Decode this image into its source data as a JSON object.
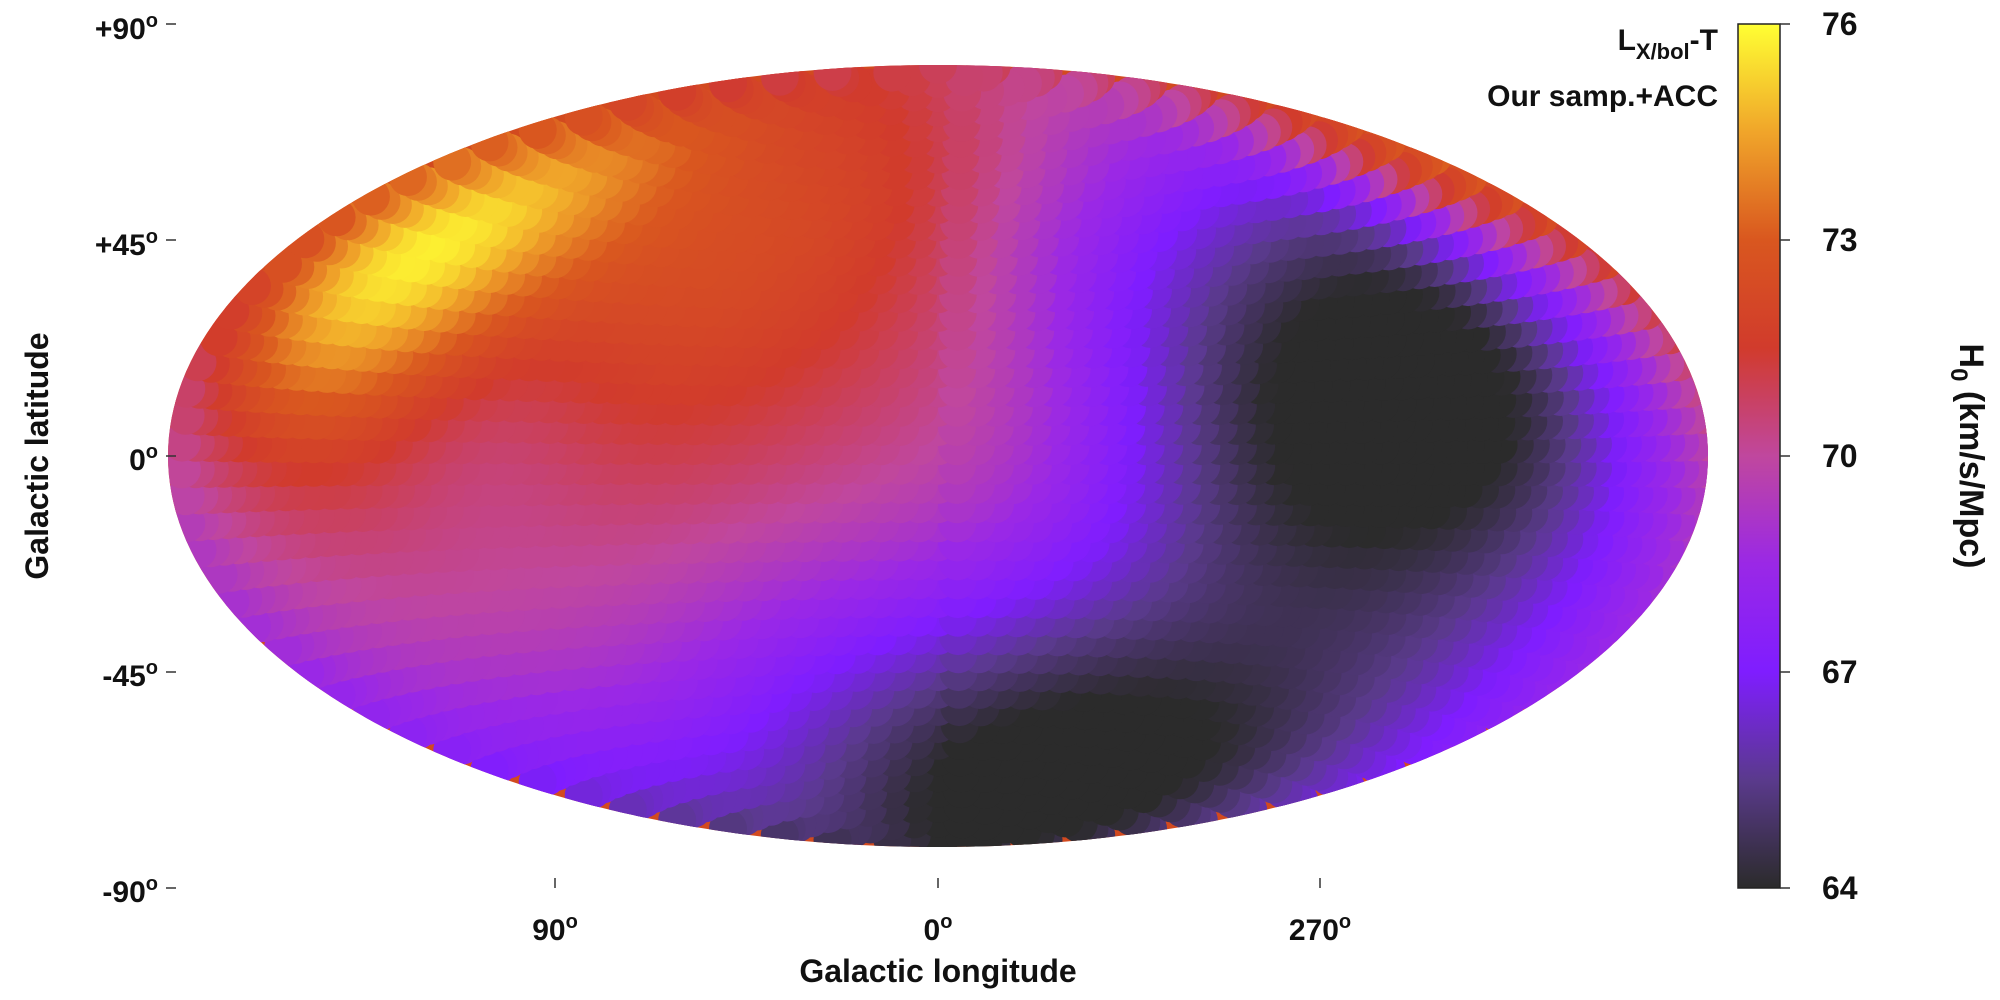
{
  "chart_data": {
    "type": "heatmap",
    "projection": "aitoff-hammer",
    "xlabel": "Galactic longitude",
    "ylabel": "Galactic latitude",
    "x_ticks": [
      {
        "lon": 90,
        "label": "90"
      },
      {
        "lon": 0,
        "label": "0"
      },
      {
        "lon": 270,
        "label": "270"
      }
    ],
    "y_ticks": [
      {
        "lat": 90,
        "label": "+90"
      },
      {
        "lat": 45,
        "label": "+45"
      },
      {
        "lat": 0,
        "label": "0"
      },
      {
        "lat": -45,
        "label": "-45"
      },
      {
        "lat": -90,
        "label": "-90"
      }
    ],
    "degree_symbol": "o",
    "annotation": {
      "relation_main": "L",
      "relation_sub": "X/bol",
      "relation_tail": "-T",
      "sample": "Our samp.+ACC"
    },
    "colorbar": {
      "label_main": "H",
      "label_sub": "0",
      "label_units": " (km/s/Mpc)",
      "min": 64,
      "max": 76,
      "ticks": [
        "76",
        "73",
        "70",
        "67",
        "64"
      ],
      "colormap": "gnuplot",
      "stops": [
        "#2b2b2b",
        "#5a3a8c",
        "#7f1dff",
        "#9a28e6",
        "#c0479e",
        "#d13b2c",
        "#d9571f",
        "#f0a52a",
        "#ffff33"
      ]
    },
    "grid": false,
    "background_value": 70.6,
    "features": [
      {
        "lon": 245,
        "lat": -15,
        "value": 66.3,
        "spread": 48,
        "note": "low-H0 region"
      },
      {
        "lon": 290,
        "lat": 12,
        "value": 67.0,
        "spread": 30
      },
      {
        "lon": 240,
        "lat": 25,
        "value": 67.6,
        "spread": 26
      },
      {
        "lon": 330,
        "lat": -55,
        "value": 67.3,
        "spread": 26
      },
      {
        "lon": 30,
        "lat": -55,
        "value": 68.3,
        "spread": 28
      },
      {
        "lon": 265,
        "lat": -70,
        "value": 68.4,
        "spread": 22
      },
      {
        "lon": 130,
        "lat": -70,
        "value": 68.6,
        "spread": 24
      },
      {
        "lon": 150,
        "lat": 35,
        "value": 74.6,
        "spread": 22,
        "note": "high-H0 region"
      },
      {
        "lon": 120,
        "lat": 40,
        "value": 72.5,
        "spread": 24
      },
      {
        "lon": 60,
        "lat": 30,
        "value": 71.8,
        "spread": 26
      },
      {
        "lon": 15,
        "lat": 60,
        "value": 71.6,
        "spread": 25
      },
      {
        "lon": 180,
        "lat": 10,
        "value": 71.2,
        "spread": 28
      },
      {
        "lon": 330,
        "lat": 45,
        "value": 70.0,
        "spread": 18
      },
      {
        "lon": 100,
        "lat": 10,
        "value": 69.9,
        "spread": 18
      },
      {
        "lon": 200,
        "lat": 50,
        "value": 72.8,
        "spread": 12
      }
    ]
  }
}
